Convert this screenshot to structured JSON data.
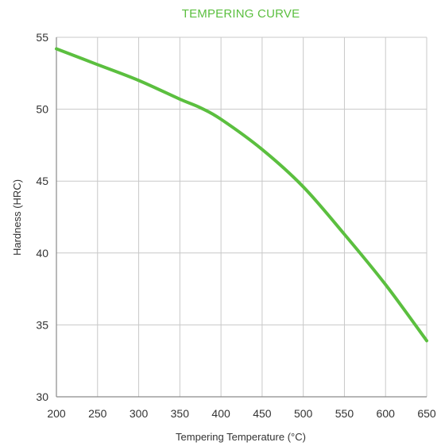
{
  "chart_data": {
    "type": "line",
    "title": "TEMPERING CURVE",
    "xlabel": "Tempering Temperature (°C)",
    "ylabel": "Hardness (HRC)",
    "xlim": [
      200,
      650
    ],
    "ylim": [
      30,
      55
    ],
    "x_ticks": [
      "200",
      "250",
      "300",
      "350",
      "400",
      "450",
      "500",
      "550",
      "600",
      "650"
    ],
    "y_ticks": [
      "30",
      "35",
      "40",
      "45",
      "50",
      "55"
    ],
    "grid": true,
    "legend": false,
    "series": [
      {
        "x": [
          200,
          250,
          300,
          350,
          375,
          400,
          450,
          500,
          550,
          600,
          650
        ],
        "y": [
          54.2,
          53.1,
          52.0,
          50.7,
          50.1,
          49.3,
          47.2,
          44.6,
          41.3,
          37.8,
          33.9
        ]
      }
    ]
  },
  "colors": {
    "title": "#5bbf3f",
    "line": "#5bbf3f",
    "grid": "#c8c8c8",
    "axis": "#8a8a8a",
    "text": "#333333"
  }
}
